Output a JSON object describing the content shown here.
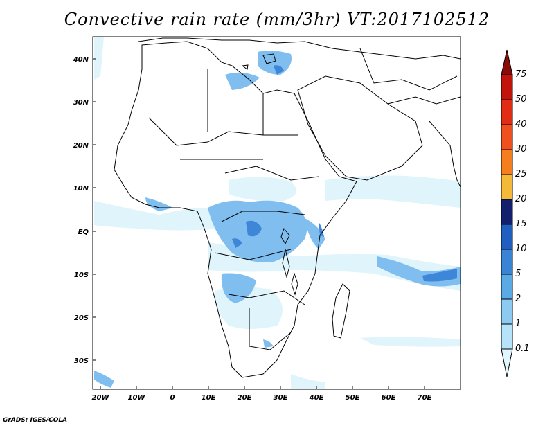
{
  "title": "Convective rain rate (mm/3hr) VT:2017102512",
  "credit": "GrADS: IGES/COLA",
  "lat_labels": [
    "40N",
    "30N",
    "20N",
    "10N",
    "EQ",
    "10S",
    "20S",
    "30S"
  ],
  "lon_labels": [
    "20W",
    "10W",
    "0",
    "10E",
    "20E",
    "30E",
    "40E",
    "50E",
    "60E",
    "70E"
  ],
  "colorbar": {
    "labels": [
      "0.1",
      "1",
      "2",
      "5",
      "10",
      "15",
      "20",
      "25",
      "30",
      "40",
      "50",
      "75"
    ],
    "colors": [
      "#e0f7ff",
      "#b5e3fa",
      "#8ccaf2",
      "#5aaae6",
      "#3a84d6",
      "#1e5fbf",
      "#12206e",
      "#f5b93a",
      "#f57f1e",
      "#f0501e",
      "#e02d14",
      "#c3140c",
      "#8a0c08"
    ]
  },
  "colors": {
    "light_rain": "#dff4fb",
    "moderate_rain": "#7fbeef",
    "heavy_rain": "#3e86d8",
    "coastline": "#000000"
  }
}
